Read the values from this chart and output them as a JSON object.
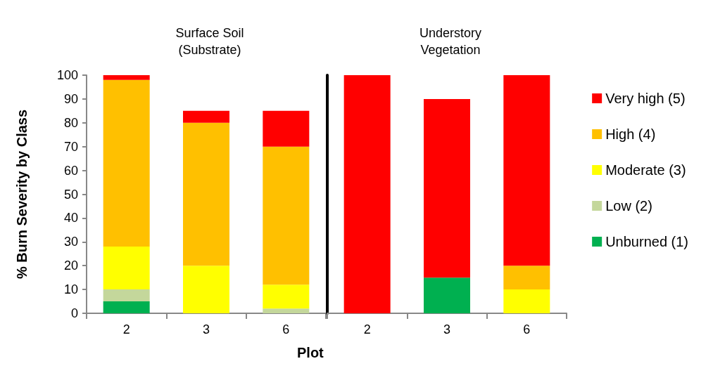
{
  "chart_data": [
    {
      "type": "bar",
      "title": "Surface Soil\n(Substrate)",
      "xlabel": "Plot",
      "ylabel": "% Burn Severity by Class",
      "categories": [
        "2",
        "3",
        "6"
      ],
      "stacked": true,
      "ylim": [
        0,
        100
      ],
      "yticks": [
        0,
        10,
        20,
        30,
        40,
        50,
        60,
        70,
        80,
        90,
        100
      ],
      "series": [
        {
          "color": "#00b050",
          "values": [
            5,
            0,
            0
          ]
        },
        {
          "color": "#c4d79b",
          "values": [
            5,
            0,
            2
          ]
        },
        {
          "color": "#ffff00",
          "values": [
            18,
            20,
            10
          ]
        },
        {
          "color": "#ffc000",
          "values": [
            70,
            60,
            58
          ]
        },
        {
          "color": "#ff0000",
          "values": [
            2,
            5,
            15
          ]
        }
      ]
    },
    {
      "type": "bar",
      "title": "Understory\nVegetation",
      "categories": [
        "2",
        "3",
        "6"
      ],
      "stacked": true,
      "ylim": [
        0,
        100
      ],
      "tick_labels": "x",
      "legend": "right",
      "series": [
        {
          "name": "Unburned (1)",
          "color": "#00b050",
          "values": [
            0,
            15,
            0
          ]
        },
        {
          "name": "Low (2)",
          "color": "#c4d79b",
          "values": [
            0,
            0,
            0
          ]
        },
        {
          "name": "Moderate (3)",
          "color": "#ffff00",
          "values": [
            0,
            0,
            10
          ]
        },
        {
          "name": "High (4)",
          "color": "#ffc000",
          "values": [
            0,
            0,
            10
          ]
        },
        {
          "name": "Very high (5)",
          "color": "#ff0000",
          "values": [
            100,
            75,
            80
          ]
        }
      ]
    }
  ]
}
